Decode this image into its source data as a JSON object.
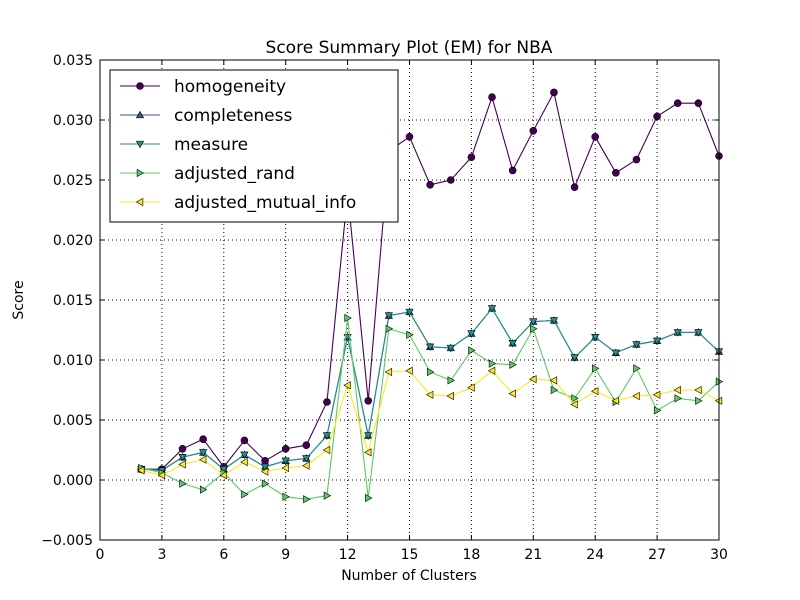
{
  "chart_data": {
    "type": "line",
    "title": "Score Summary Plot (EM) for NBA",
    "xlabel": "Number of Clusters",
    "ylabel": "Score",
    "xlim": [
      0,
      30
    ],
    "ylim": [
      -0.005,
      0.035
    ],
    "xticks": [
      0,
      3,
      6,
      9,
      12,
      15,
      18,
      21,
      24,
      27,
      30
    ],
    "xtick_labels": [
      "0",
      "3",
      "6",
      "9",
      "12",
      "15",
      "18",
      "21",
      "24",
      "27",
      "30"
    ],
    "yticks": [
      -0.005,
      0.0,
      0.005,
      0.01,
      0.015,
      0.02,
      0.025,
      0.03,
      0.035
    ],
    "ytick_labels": [
      "−0.005",
      "0.000",
      "0.005",
      "0.010",
      "0.015",
      "0.020",
      "0.025",
      "0.030",
      "0.035"
    ],
    "grid": true,
    "legend_position": "top-left",
    "x": [
      2,
      3,
      4,
      5,
      6,
      7,
      8,
      9,
      10,
      11,
      12,
      13,
      14,
      15,
      16,
      17,
      18,
      19,
      20,
      21,
      22,
      23,
      24,
      25,
      26,
      27,
      28,
      29,
      30
    ],
    "series": [
      {
        "name": "homogeneity",
        "color": "#440154",
        "marker": "circle",
        "values": [
          0.0009,
          0.0009,
          0.0026,
          0.0034,
          0.0011,
          0.0033,
          0.0016,
          0.0026,
          0.0029,
          0.0065,
          0.0239,
          0.0066,
          0.0274,
          0.0286,
          0.0246,
          0.025,
          0.0269,
          0.0319,
          0.0258,
          0.0291,
          0.0323,
          0.0244,
          0.0286,
          0.0256,
          0.0267,
          0.0303,
          0.0314,
          0.0314,
          0.027
        ]
      },
      {
        "name": "completeness",
        "color": "#3b528b",
        "marker": "triangle-up",
        "values": [
          0.0009,
          0.0008,
          0.0019,
          0.0023,
          0.0009,
          0.0021,
          0.0011,
          0.0016,
          0.0018,
          0.0037,
          0.0119,
          0.0037,
          0.0137,
          0.014,
          0.0111,
          0.011,
          0.0122,
          0.0143,
          0.0114,
          0.0132,
          0.0133,
          0.0102,
          0.0119,
          0.0106,
          0.0113,
          0.0116,
          0.0123,
          0.0123,
          0.0107
        ]
      },
      {
        "name": "measure",
        "color": "#21918c",
        "marker": "triangle-down",
        "values": [
          0.0009,
          0.0008,
          0.0019,
          0.0023,
          0.0009,
          0.0021,
          0.0011,
          0.0016,
          0.0018,
          0.0037,
          0.0119,
          0.0037,
          0.0137,
          0.014,
          0.0111,
          0.011,
          0.0122,
          0.0143,
          0.0114,
          0.0132,
          0.0133,
          0.0102,
          0.0119,
          0.0106,
          0.0113,
          0.0116,
          0.0123,
          0.0123,
          0.0107
        ]
      },
      {
        "name": "adjusted_rand",
        "color": "#5ec962",
        "marker": "triangle-right",
        "values": [
          0.001,
          0.0006,
          -0.0003,
          -0.0008,
          0.0006,
          -0.0012,
          -0.0003,
          -0.0014,
          -0.0016,
          -0.0013,
          0.0135,
          -0.0015,
          0.0126,
          0.0121,
          0.009,
          0.0083,
          0.0108,
          0.0097,
          0.0096,
          0.0126,
          0.0075,
          0.0068,
          0.0093,
          0.0065,
          0.0093,
          0.0058,
          0.0068,
          0.0066,
          0.0082
        ]
      },
      {
        "name": "adjusted_mutual_info",
        "color": "#fde725",
        "marker": "triangle-left",
        "values": [
          0.0008,
          0.0004,
          0.0013,
          0.0017,
          0.0004,
          0.0015,
          0.0007,
          0.001,
          0.0012,
          0.0025,
          0.0079,
          0.0023,
          0.009,
          0.0091,
          0.0071,
          0.007,
          0.0077,
          0.0091,
          0.0072,
          0.0084,
          0.0083,
          0.0063,
          0.0074,
          0.0066,
          0.007,
          0.0071,
          0.0075,
          0.0075,
          0.0066
        ]
      }
    ]
  }
}
